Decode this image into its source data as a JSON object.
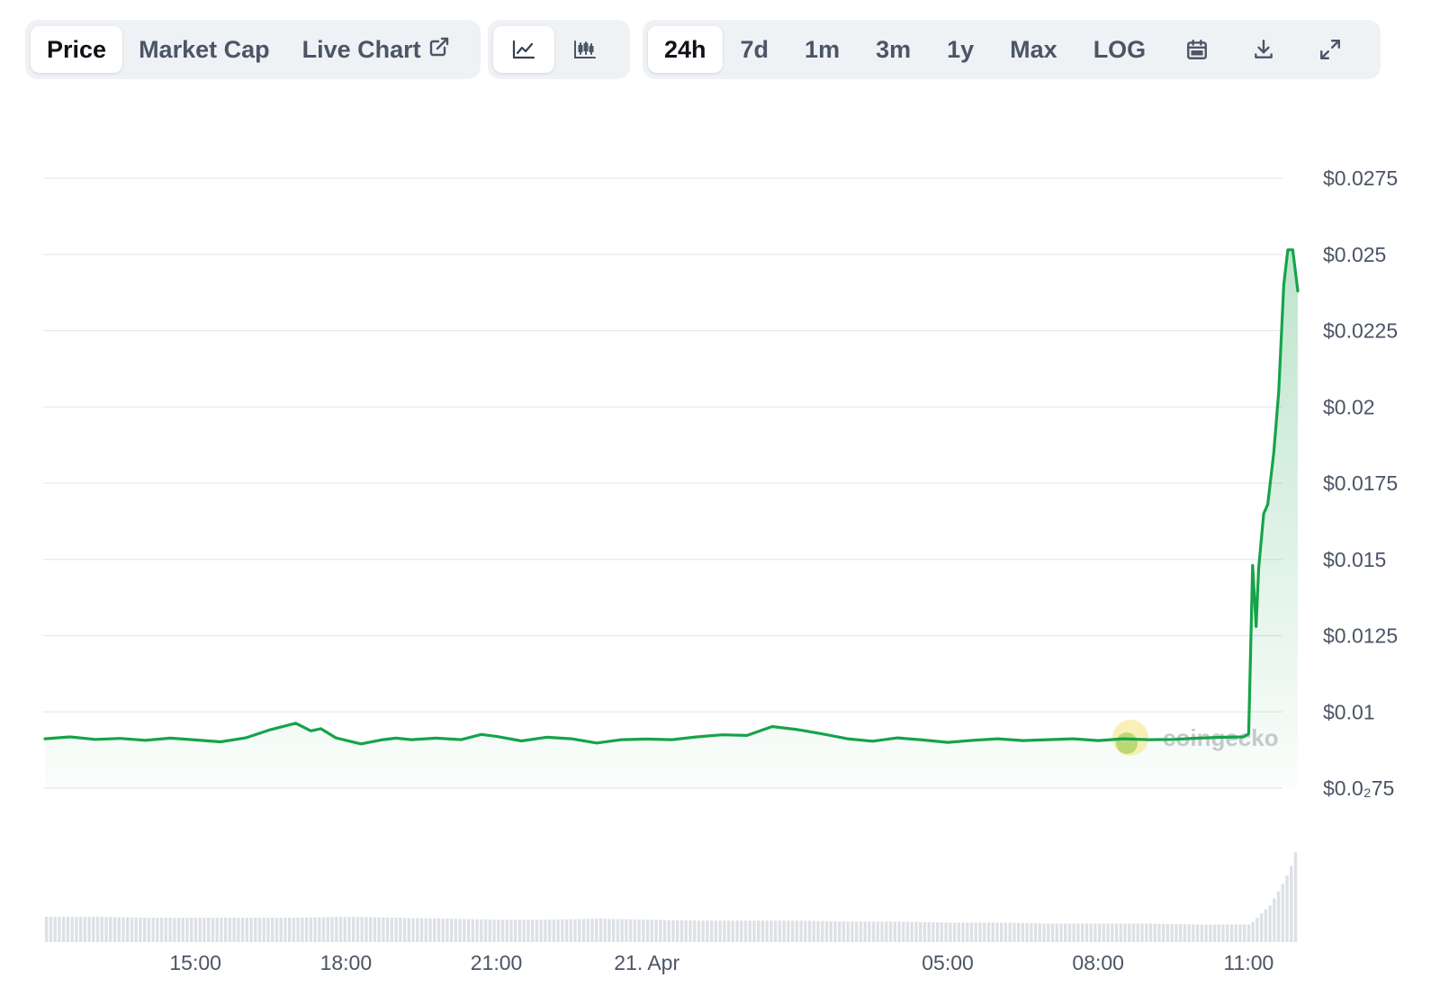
{
  "toolbar": {
    "data_tabs": [
      {
        "label": "Price",
        "active": true
      },
      {
        "label": "Market Cap",
        "active": false
      },
      {
        "label": "Live Chart",
        "active": false,
        "icon": "external-link-icon"
      }
    ],
    "chart_types": [
      {
        "icon": "line-chart-icon",
        "active": true
      },
      {
        "icon": "candlestick-chart-icon",
        "active": false
      }
    ],
    "ranges": [
      {
        "label": "24h",
        "active": true
      },
      {
        "label": "7d",
        "active": false
      },
      {
        "label": "1m",
        "active": false
      },
      {
        "label": "3m",
        "active": false
      },
      {
        "label": "1y",
        "active": false
      },
      {
        "label": "Max",
        "active": false
      },
      {
        "label": "LOG",
        "active": false
      }
    ],
    "tools": [
      {
        "icon": "calendar-icon"
      },
      {
        "icon": "download-icon"
      },
      {
        "icon": "expand-icon"
      }
    ]
  },
  "watermark": "coingecko",
  "chart_data": {
    "type": "area",
    "line_color": "#16a34a",
    "y_tick_labels": [
      "$0.0275",
      "$0.025",
      "$0.0225",
      "$0.02",
      "$0.0175",
      "$0.015",
      "$0.0125",
      "$0.01",
      "$0.0₂75"
    ],
    "y_ticks": [
      0.0275,
      0.025,
      0.0225,
      0.02,
      0.0175,
      0.015,
      0.0125,
      0.01,
      0.0075
    ],
    "ylim": [
      0.0075,
      0.0275
    ],
    "x_tick_labels": [
      "15:00",
      "18:00",
      "21:00",
      "21. Apr",
      "05:00",
      "08:00",
      "11:00"
    ],
    "x_ticks": [
      -21,
      -18,
      -15,
      -12,
      -6,
      -3,
      0
    ],
    "xlim": [
      -24,
      0.98
    ],
    "x_unit": "hours relative to 11:00",
    "series": [
      {
        "x": [
          -24,
          -23.5,
          -23,
          -22.5,
          -22,
          -21.5,
          -21,
          -20.5,
          -20,
          -19.5,
          -19,
          -18.7,
          -18.5,
          -18.2,
          -18,
          -17.7,
          -17.3,
          -17,
          -16.7,
          -16.2,
          -15.7,
          -15.3,
          -15,
          -14.5,
          -14,
          -13.5,
          -13,
          -12.5,
          -12,
          -11.5,
          -11,
          -10.5,
          -10,
          -9.5,
          -9,
          -8.5,
          -8,
          -7.5,
          -7,
          -6.5,
          -6,
          -5.5,
          -5,
          -4.5,
          -4,
          -3.5,
          -3,
          -2.5,
          -2,
          -1.5,
          -1,
          -0.5,
          -0.1,
          0,
          0.08,
          0.15,
          0.2,
          0.3,
          0.38,
          0.5,
          0.6,
          0.7,
          0.78,
          0.88,
          0.98
        ],
        "y": [
          0.00912,
          0.00918,
          0.0091,
          0.00913,
          0.00907,
          0.00914,
          0.00908,
          0.00902,
          0.00915,
          0.00942,
          0.00963,
          0.00938,
          0.00945,
          0.00915,
          0.00907,
          0.00895,
          0.00908,
          0.00914,
          0.00909,
          0.00914,
          0.00909,
          0.00926,
          0.0092,
          0.00905,
          0.00917,
          0.00912,
          0.00898,
          0.00909,
          0.00911,
          0.00909,
          0.00918,
          0.00925,
          0.00923,
          0.00952,
          0.00942,
          0.00928,
          0.00912,
          0.00904,
          0.00915,
          0.00908,
          0.009,
          0.00907,
          0.00912,
          0.00906,
          0.00909,
          0.00912,
          0.00906,
          0.00912,
          0.00909,
          0.0091,
          0.00914,
          0.00917,
          0.00918,
          0.00928,
          0.0148,
          0.0128,
          0.0147,
          0.0165,
          0.0168,
          0.0185,
          0.0205,
          0.024,
          0.02515,
          0.02515,
          0.0238
        ]
      }
    ],
    "volume": {
      "x": [
        -24,
        -23,
        -22,
        -21,
        -20,
        -19,
        -18,
        -17,
        -16,
        -15,
        -14,
        -13,
        -12,
        -11,
        -10,
        -9,
        -8,
        -7,
        -6,
        -5,
        -4,
        -3,
        -2,
        -1,
        0,
        0.2,
        0.4,
        0.6,
        0.8,
        0.95
      ],
      "relative_values": [
        0.26,
        0.26,
        0.25,
        0.25,
        0.25,
        0.25,
        0.26,
        0.25,
        0.24,
        0.23,
        0.23,
        0.24,
        0.23,
        0.22,
        0.22,
        0.22,
        0.21,
        0.21,
        0.2,
        0.2,
        0.19,
        0.19,
        0.19,
        0.18,
        0.18,
        0.28,
        0.38,
        0.55,
        0.75,
        1.0
      ]
    }
  }
}
